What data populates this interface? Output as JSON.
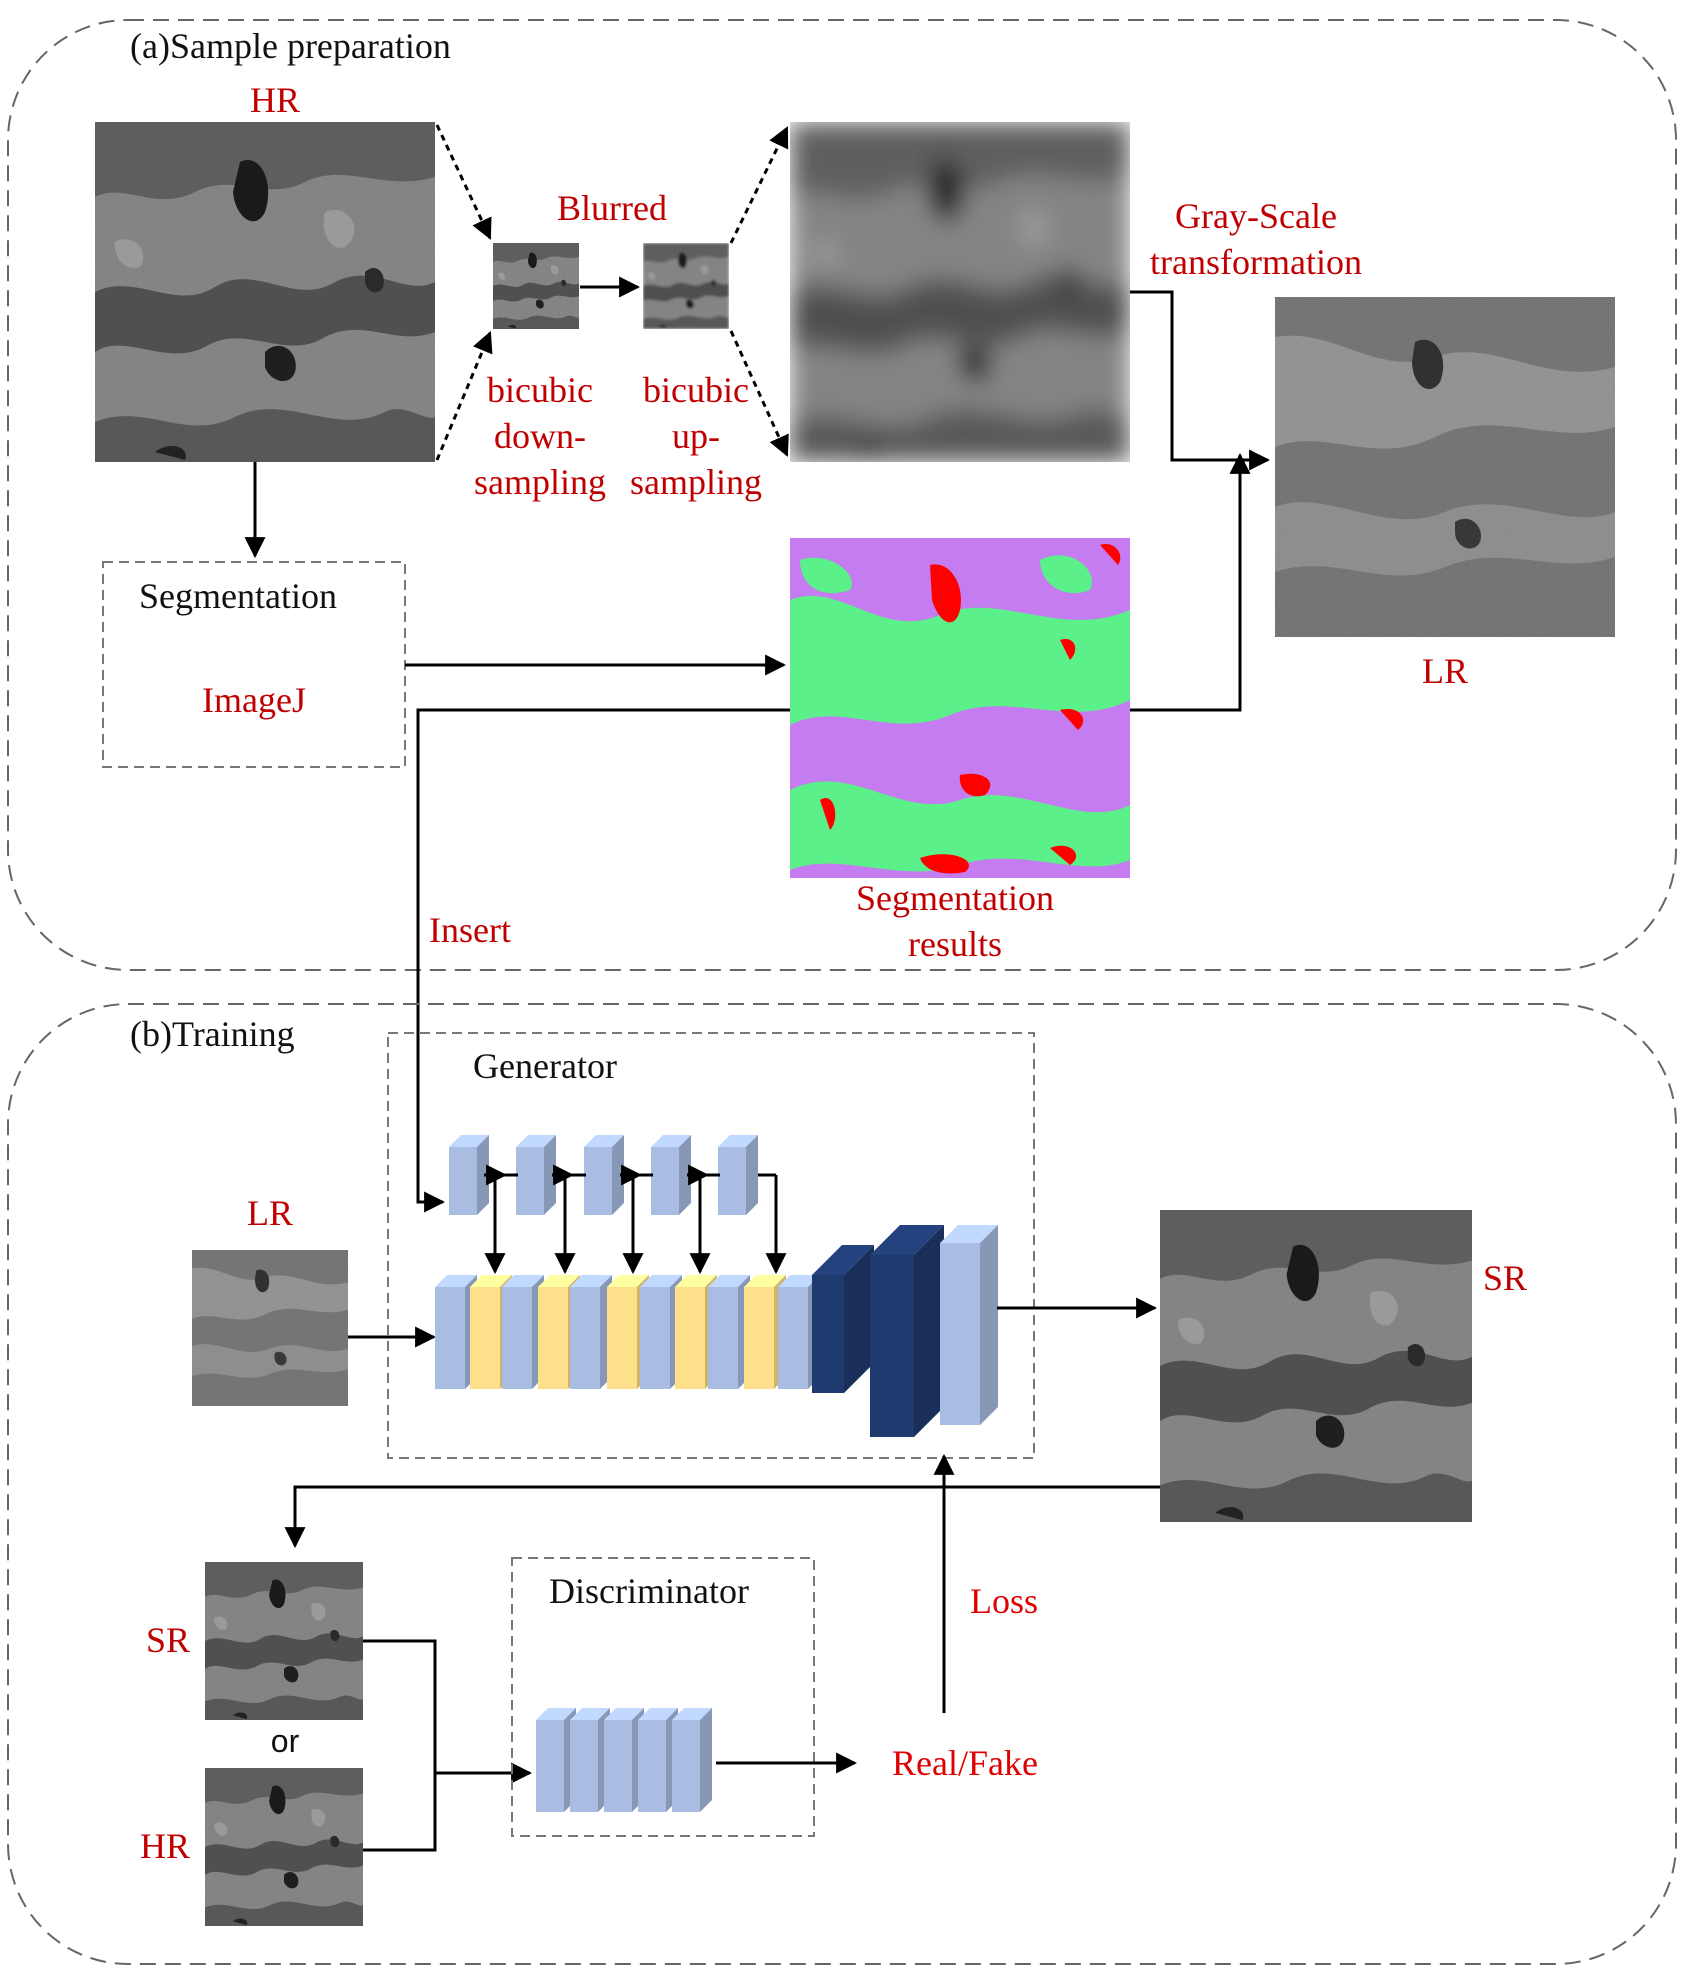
{
  "panels": {
    "a_title": "(a)Sample preparation",
    "b_title": "(b)Training"
  },
  "prep": {
    "hr_label": "HR",
    "blurred_label": "Blurred",
    "down_line1": "bicubic",
    "down_line2": "down-",
    "down_line3": "sampling",
    "up_line1": "bicubic",
    "up_line2": "up-",
    "up_line3": "sampling",
    "gray_line1": "Gray-Scale",
    "gray_line2": "transformation",
    "lr_label": "LR",
    "seg_box_title": "Segmentation",
    "seg_tool": "ImageJ",
    "seg_results_line1": "Segmentation",
    "seg_results_line2": "results",
    "insert_label": "Insert"
  },
  "training": {
    "generator_title": "Generator",
    "lr_label": "LR",
    "sr_label": "SR",
    "disc_title": "Discriminator",
    "sr_input_label": "SR",
    "or_label": "or",
    "hr_input_label": "HR",
    "loss_label": "Loss",
    "realfake_label": "Real/Fake"
  },
  "colors": {
    "label_red": "#c00000",
    "block_light_blue": "#a9bde3",
    "block_yellow": "#ffe08a",
    "block_dark_blue": "#1f3a6e",
    "seg_green": "#5cf08a",
    "seg_purple": "#c47cf0",
    "seg_red": "#ff0000"
  },
  "icons": {
    "micrograph": "sem-micrograph-image",
    "segmentation": "segmentation-map-image"
  }
}
